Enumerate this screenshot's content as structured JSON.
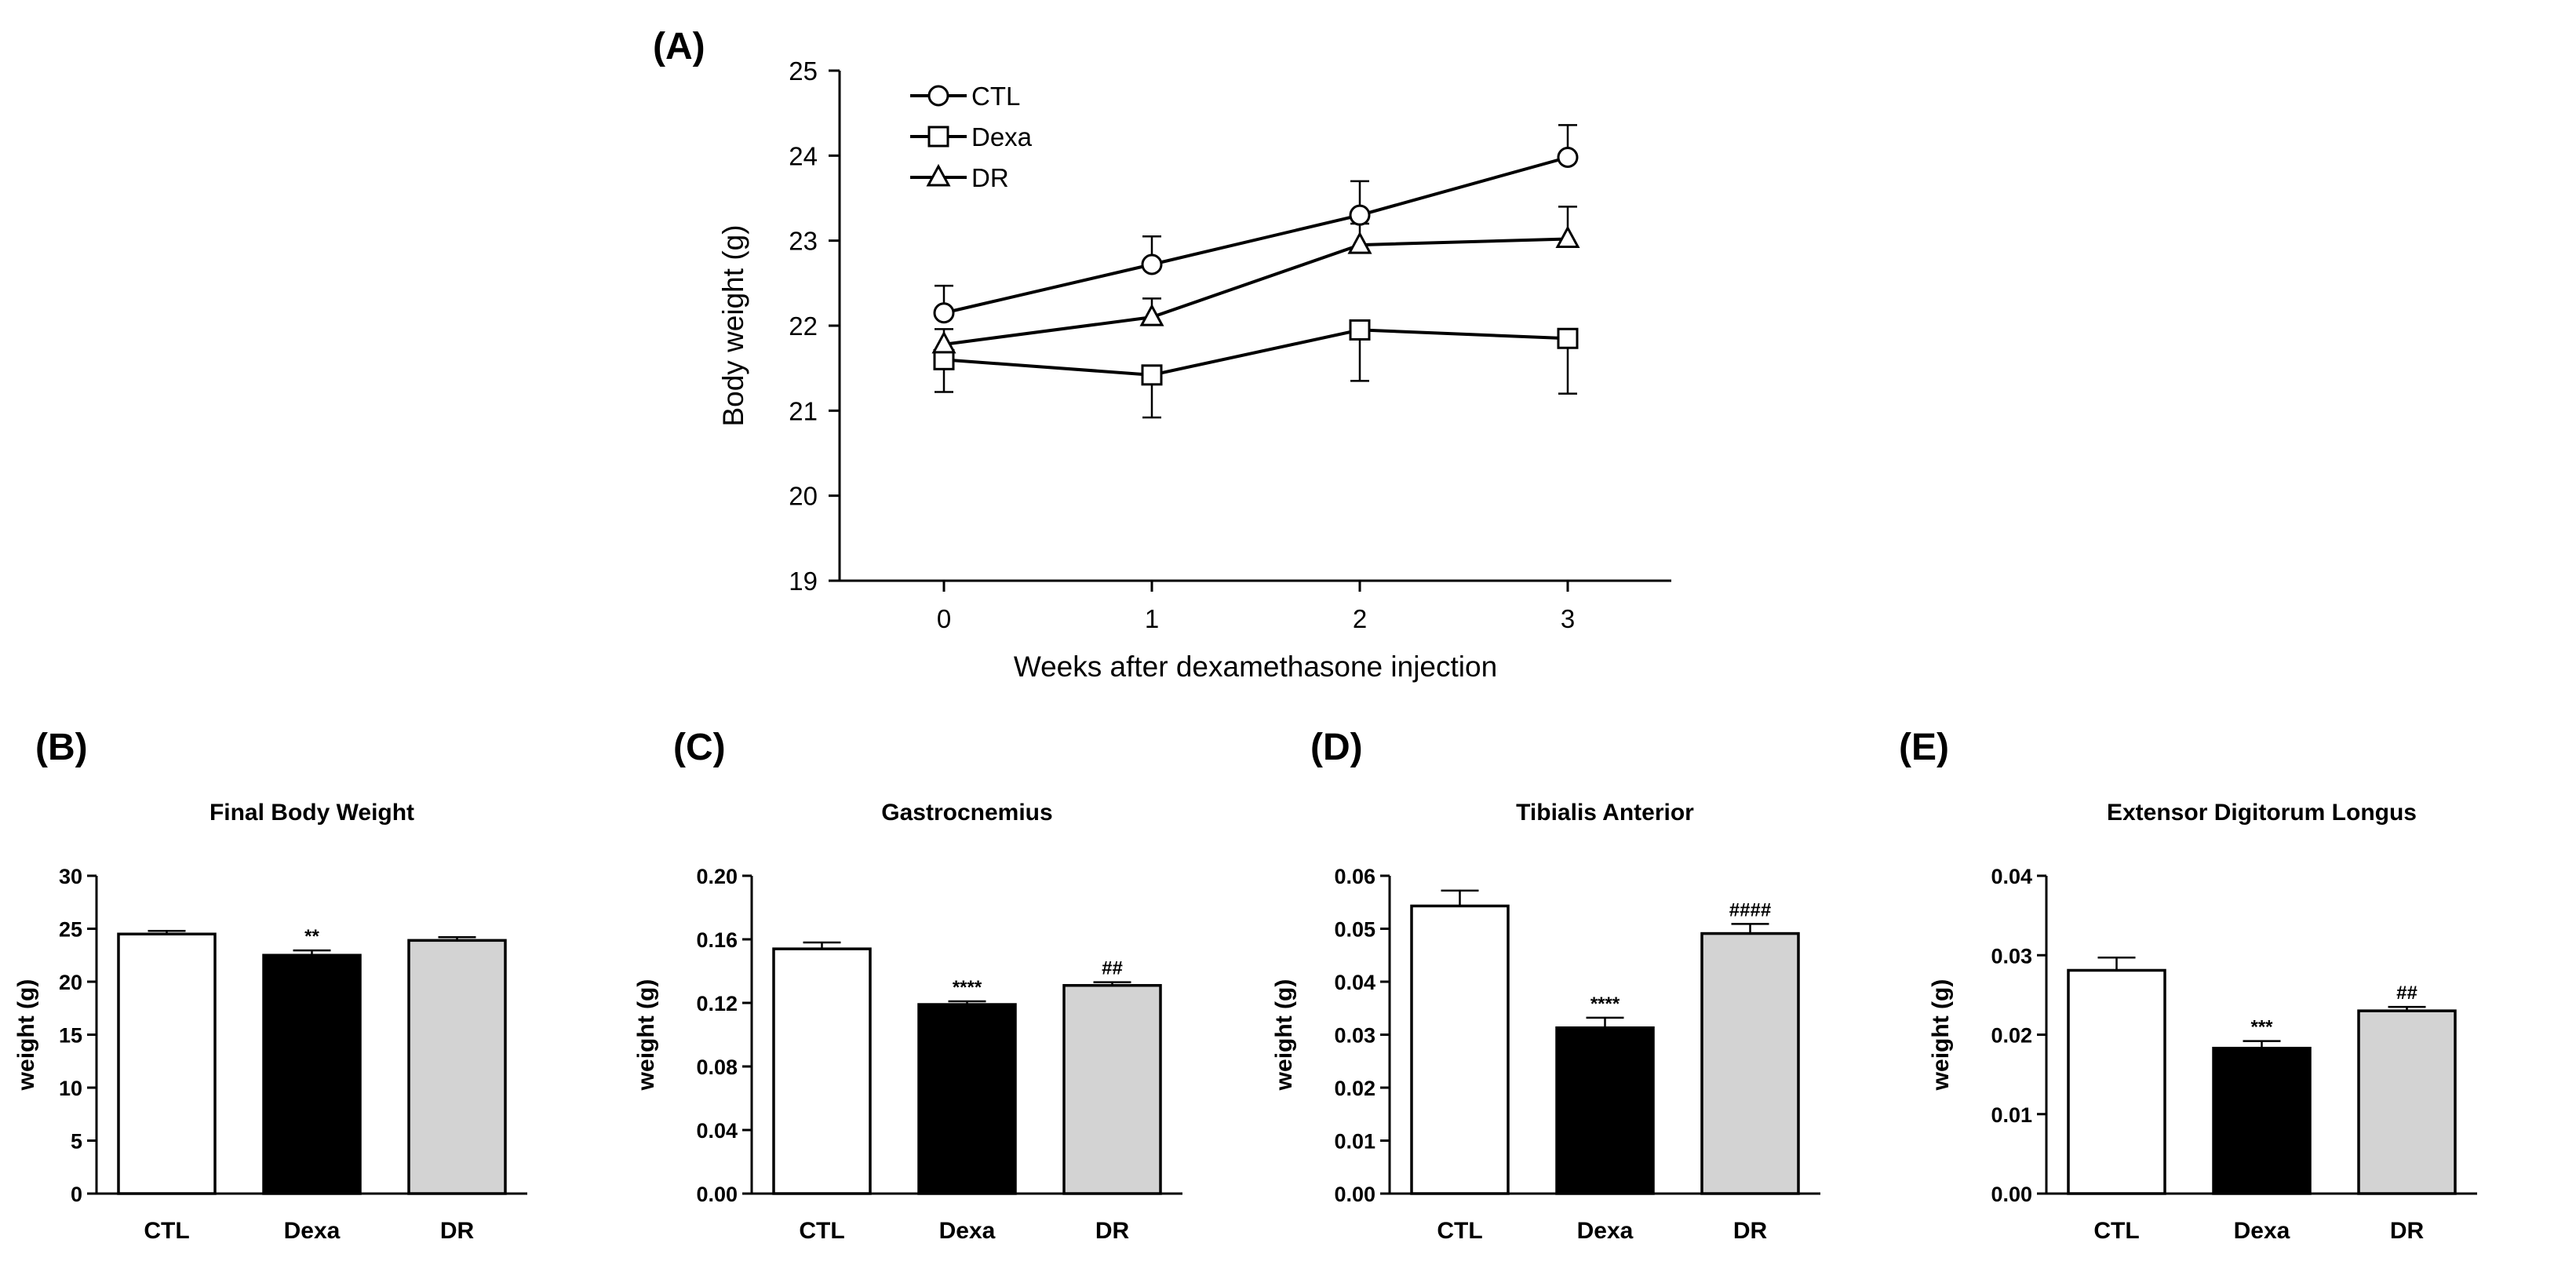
{
  "chart_data": [
    {
      "panel": "(A)",
      "type": "line",
      "title": "",
      "xlabel": "Weeks after dexamethasone injection",
      "ylabel": "Body weight (g)",
      "x": [
        0,
        1,
        2,
        3
      ],
      "xticks": [
        "0",
        "1",
        "2",
        "3"
      ],
      "ylim": [
        19,
        25
      ],
      "yticks": [
        "19",
        "20",
        "21",
        "22",
        "23",
        "24",
        "25"
      ],
      "legend_position": "top-left",
      "series": [
        {
          "name": "CTL",
          "marker": "circle",
          "values": [
            22.15,
            22.72,
            23.3,
            23.98
          ],
          "errors": [
            0.32,
            0.33,
            0.4,
            0.38
          ],
          "error_dir": "up"
        },
        {
          "name": "Dexa",
          "marker": "square",
          "values": [
            21.6,
            21.42,
            21.95,
            21.85
          ],
          "errors": [
            0.38,
            0.5,
            0.6,
            0.65
          ],
          "error_dir": "down"
        },
        {
          "name": "DR",
          "marker": "triangle",
          "values": [
            21.78,
            22.1,
            22.95,
            23.02
          ],
          "errors": [
            0.18,
            0.22,
            0.25,
            0.38
          ],
          "error_dir": "up"
        }
      ]
    },
    {
      "panel": "(B)",
      "type": "bar",
      "title": "Final Body Weight",
      "ylabel": "weight (g)",
      "categories": [
        "CTL",
        "Dexa",
        "DR"
      ],
      "values": [
        24.5,
        22.5,
        23.9
      ],
      "errors": [
        0.3,
        0.45,
        0.3
      ],
      "annotations": [
        "",
        "**",
        ""
      ],
      "colors": [
        "#ffffff",
        "#000000",
        "#d3d3d3"
      ],
      "ylim": [
        0,
        30
      ],
      "yticks": [
        "0",
        "5",
        "10",
        "15",
        "20",
        "25",
        "30"
      ]
    },
    {
      "panel": "(C)",
      "type": "bar",
      "title": "Gastrocnemius",
      "ylabel": "weight (g)",
      "categories": [
        "CTL",
        "Dexa",
        "DR"
      ],
      "values": [
        0.154,
        0.119,
        0.131
      ],
      "errors": [
        0.004,
        0.002,
        0.002
      ],
      "annotations": [
        "",
        "****",
        "##"
      ],
      "colors": [
        "#ffffff",
        "#000000",
        "#d3d3d3"
      ],
      "ylim": [
        0,
        0.2
      ],
      "yticks": [
        "0.00",
        "0.04",
        "0.08",
        "0.12",
        "0.16",
        "0.20"
      ]
    },
    {
      "panel": "(D)",
      "type": "bar",
      "title": "Tibialis Anterior",
      "ylabel": "weight (g)",
      "categories": [
        "CTL",
        "Dexa",
        "DR"
      ],
      "values": [
        0.0543,
        0.0313,
        0.0491
      ],
      "errors": [
        0.0029,
        0.0019,
        0.0018
      ],
      "annotations": [
        "",
        "****",
        "####"
      ],
      "colors": [
        "#ffffff",
        "#000000",
        "#d3d3d3"
      ],
      "ylim": [
        0,
        0.06
      ],
      "yticks": [
        "0.00",
        "0.01",
        "0.02",
        "0.03",
        "0.04",
        "0.05",
        "0.06"
      ]
    },
    {
      "panel": "(E)",
      "type": "bar",
      "title": "Extensor Digitorum Longus",
      "ylabel": "weight (g)",
      "categories": [
        "CTL",
        "Dexa",
        "DR"
      ],
      "values": [
        0.0281,
        0.0183,
        0.023
      ],
      "errors": [
        0.0016,
        0.0009,
        0.0005
      ],
      "annotations": [
        "",
        "***",
        "##"
      ],
      "colors": [
        "#ffffff",
        "#000000",
        "#d3d3d3"
      ],
      "ylim": [
        0,
        0.04
      ],
      "yticks": [
        "0.00",
        "0.01",
        "0.02",
        "0.03",
        "0.04"
      ]
    }
  ]
}
